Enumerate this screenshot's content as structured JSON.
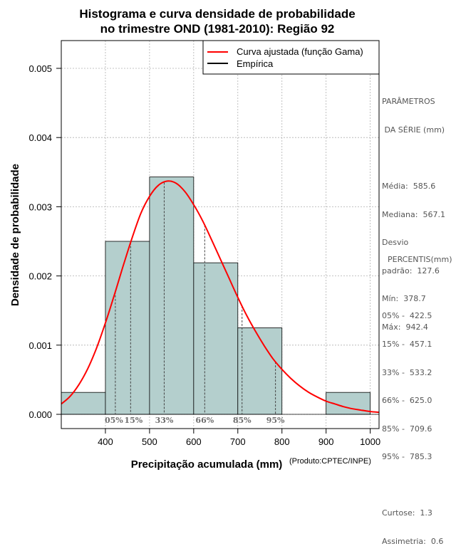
{
  "chart_data": {
    "type": "histogram",
    "title_lines": [
      "Histograma e curva densidade de probabilidade",
      "no trimestre OND (1981-2010): Região 92"
    ],
    "xlabel": "Precipitação acumulada (mm)",
    "ylabel": "Densidade de probabilidade",
    "credit": "(Produto:CPTEC/INPE)",
    "xlim": [
      300,
      1020
    ],
    "ylim": [
      0,
      0.0054
    ],
    "x_ticks": [
      400,
      500,
      600,
      700,
      800,
      900,
      1000
    ],
    "x_tick_labels": [
      "400",
      "500",
      "600",
      "700",
      "800",
      "900",
      "1000"
    ],
    "y_ticks": [
      0,
      0.001,
      0.002,
      0.003,
      0.004,
      0.005
    ],
    "y_tick_labels": [
      "0.000",
      "0.001",
      "0.002",
      "0.003",
      "0.004",
      "0.005"
    ],
    "grid": true,
    "bins": [
      {
        "start": 300,
        "end": 400,
        "density": 0.000317
      },
      {
        "start": 400,
        "end": 500,
        "density": 0.0025
      },
      {
        "start": 500,
        "end": 600,
        "density": 0.00343
      },
      {
        "start": 600,
        "end": 700,
        "density": 0.00219
      },
      {
        "start": 700,
        "end": 800,
        "density": 0.00125
      },
      {
        "start": 800,
        "end": 900,
        "density": 0.0
      },
      {
        "start": 900,
        "end": 1000,
        "density": 0.000317
      }
    ],
    "fitted_curve": {
      "name": "Curva ajustada (função Gama)",
      "color": "#ff0000",
      "x": [
        300,
        320,
        340,
        360,
        380,
        400,
        420,
        440,
        460,
        480,
        500,
        520,
        540,
        560,
        580,
        600,
        620,
        640,
        660,
        680,
        700,
        720,
        740,
        760,
        780,
        800,
        820,
        840,
        860,
        880,
        900,
        920,
        940,
        960,
        980,
        1000,
        1020
      ],
      "y": [
        0.00015,
        0.00026,
        0.00043,
        0.00066,
        0.00096,
        0.00132,
        0.00172,
        0.00214,
        0.00254,
        0.0029,
        0.00315,
        0.00331,
        0.00337,
        0.00334,
        0.00322,
        0.00303,
        0.0028,
        0.00253,
        0.00225,
        0.00197,
        0.00169,
        0.00143,
        0.0012,
        0.00099,
        0.0008,
        0.00065,
        0.00052,
        0.00041,
        0.00032,
        0.00025,
        0.00019,
        0.00015,
        0.00011,
        8e-05,
        6e-05,
        4e-05,
        3e-05
      ]
    },
    "empirical_label": "Empírica",
    "legend_position": "top-right",
    "percentile_markers": [
      {
        "label": "05%",
        "value": 422.5
      },
      {
        "label": "15%",
        "value": 457.1
      },
      {
        "label": "33%",
        "value": 533.2
      },
      {
        "label": "66%",
        "value": 625.0
      },
      {
        "label": "85%",
        "value": 709.6
      },
      {
        "label": "95%",
        "value": 785.3
      }
    ],
    "colors": {
      "bar_fill": "#b4cfcd",
      "curve": "#ff0000",
      "grid": "#b0b0b0",
      "marker_text": "#6e6e6e"
    }
  },
  "side_panel": {
    "params_title_line1": "PARÂMETROS",
    "params_title_line2": " DA SÉRIE (mm)",
    "params_lines": [
      "Média:  585.6",
      "Mediana:  567.1",
      "Desvio",
      "padrão:  127.6",
      "Mín:  378.7",
      "Máx:  942.4"
    ],
    "percentis_title": "PERCENTIS(mm)",
    "percentis_lines": [
      "05% -  422.5",
      "15% -  457.1",
      "33% -  533.2",
      "66% -  625.0",
      "85% -  709.6",
      "95% -  785.3"
    ],
    "stats_lines": [
      "Curtose:  1.3",
      "Assimetria:  0.6"
    ]
  }
}
